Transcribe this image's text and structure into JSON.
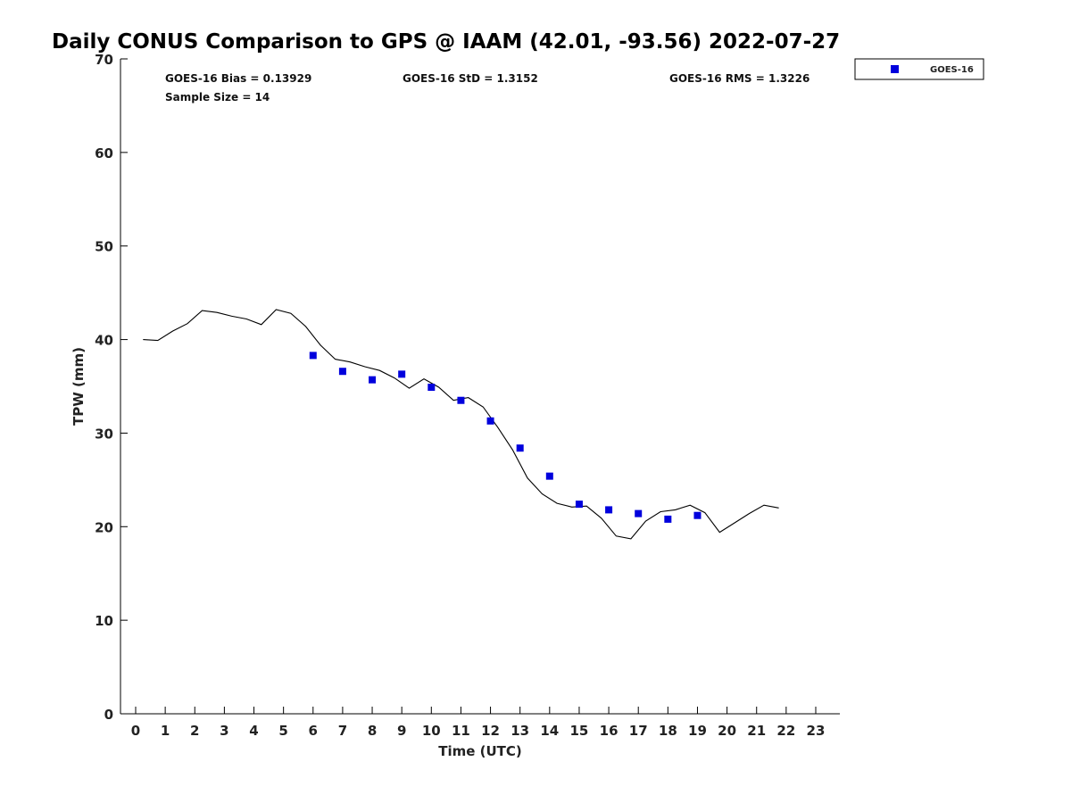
{
  "chart_data": {
    "type": "line+scatter",
    "title": "Daily CONUS Comparison to GPS @ IAAM (42.01, -93.56) 2022-07-27",
    "xlabel": "Time (UTC)",
    "ylabel": "TPW (mm)",
    "xlim": [
      -0.5,
      23.75
    ],
    "ylim": [
      0,
      70
    ],
    "xticks": [
      "0",
      "1",
      "2",
      "3",
      "4",
      "5",
      "6",
      "7",
      "8",
      "9",
      "10",
      "11",
      "12",
      "13",
      "14",
      "15",
      "16",
      "17",
      "18",
      "19",
      "20",
      "21",
      "22",
      "23"
    ],
    "yticks": [
      "0",
      "10",
      "20",
      "30",
      "40",
      "50",
      "60",
      "70"
    ],
    "grid": false,
    "stats": {
      "bias": "GOES-16 Bias = 0.13929",
      "std": "GOES-16 StD = 1.3152",
      "rms": "GOES-16 RMS = 1.3226",
      "sample": "Sample Size = 14"
    },
    "legend": {
      "position": "top-right",
      "entries": [
        "GOES-16"
      ]
    },
    "series": [
      {
        "name": "GPS",
        "style": "line",
        "color": "#000000",
        "x": [
          0.25,
          0.75,
          1.25,
          1.75,
          2.25,
          2.75,
          3.25,
          3.75,
          4.25,
          4.75,
          5.25,
          5.75,
          6.25,
          6.75,
          7.25,
          7.75,
          8.25,
          8.75,
          9.25,
          9.75,
          10.25,
          10.75,
          11.25,
          11.75,
          12.25,
          12.75,
          13.25,
          13.75,
          14.25,
          14.75,
          15.25,
          15.75,
          16.25,
          16.75,
          17.25,
          17.75,
          18.25,
          18.75,
          19.25,
          19.75,
          20.25,
          20.75,
          21.25,
          21.75
        ],
        "y": [
          40.0,
          39.9,
          40.9,
          41.7,
          43.1,
          42.9,
          42.5,
          42.2,
          41.6,
          43.2,
          42.8,
          41.4,
          39.4,
          37.9,
          37.6,
          37.1,
          36.7,
          35.9,
          34.8,
          35.8,
          34.9,
          33.5,
          33.8,
          32.8,
          30.6,
          28.2,
          25.2,
          23.5,
          22.5,
          22.1,
          22.2,
          20.9,
          19.0,
          18.7,
          20.6,
          21.6,
          21.8,
          22.3,
          21.5,
          19.4,
          20.4,
          21.4,
          22.3,
          22.0
        ]
      },
      {
        "name": "GOES-16",
        "style": "marker-square",
        "color": "#0000dd",
        "x": [
          6,
          7,
          8,
          9,
          10,
          11,
          12,
          13,
          14,
          15,
          16,
          17,
          18,
          19
        ],
        "y": [
          38.3,
          36.6,
          35.7,
          36.3,
          34.9,
          33.5,
          31.3,
          28.4,
          25.4,
          22.4,
          21.8,
          21.4,
          20.8,
          21.2
        ]
      }
    ]
  }
}
